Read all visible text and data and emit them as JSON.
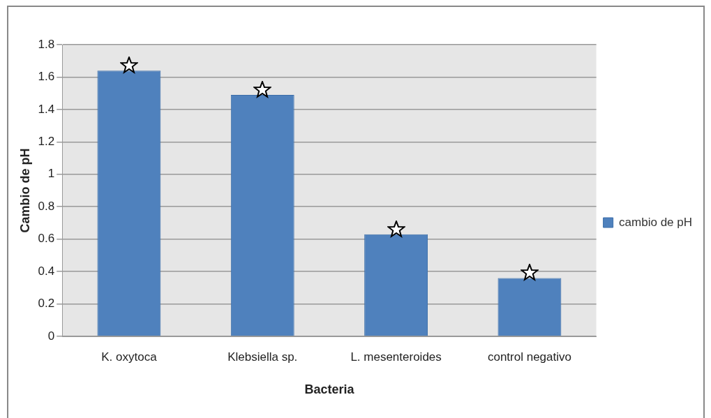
{
  "chart_data": {
    "type": "bar",
    "xlabel": "Bacteria",
    "ylabel": "Cambio de pH",
    "categories": [
      "K. oxytoca",
      "Klebsiella sp.",
      "L. mesenteroides",
      "control negativo"
    ],
    "series": [
      {
        "name": "cambio de pH",
        "color": "#4f81bd",
        "values": [
          1.64,
          1.49,
          0.63,
          0.36
        ]
      }
    ],
    "ylim": [
      0,
      1.8
    ],
    "yticks": [
      0,
      0.2,
      0.4,
      0.6,
      0.8,
      1,
      1.2,
      1.4,
      1.6,
      1.8
    ],
    "grid": "y",
    "legend": "right"
  }
}
